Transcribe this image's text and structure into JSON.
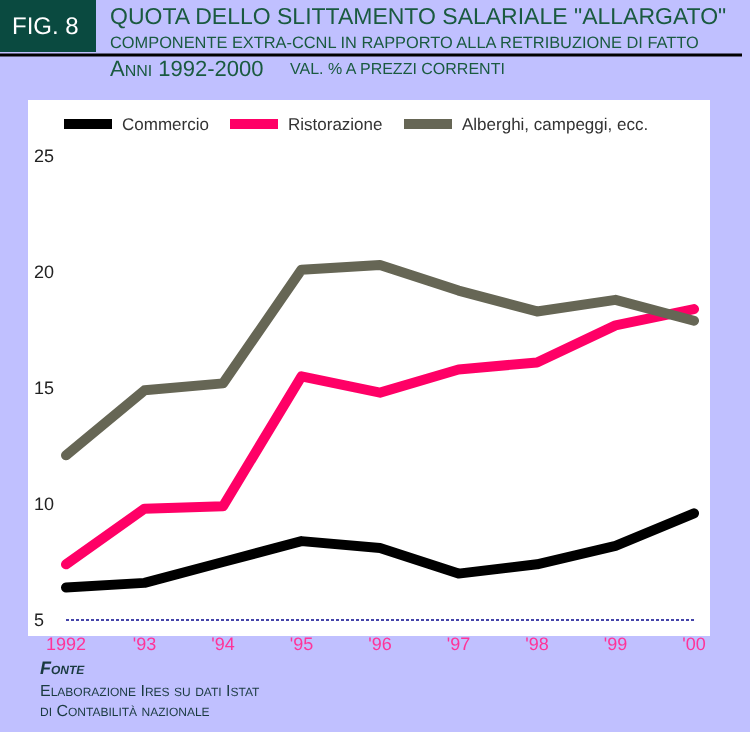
{
  "chart_data": {
    "type": "line",
    "title": "QUOTA DELLO SLITTAMENTO SALARIALE \"ALLARGATO\"",
    "subtitle": "COMPONENTE EXTRA-CCNL IN RAPPORTO ALLA RETRIBUZIONE DI FATTO",
    "annotations": [
      "FIG. 8",
      "Anni 1992-2000",
      "VAL. % A PREZZI CORRENTI",
      "Fonte",
      "Elaborazione Ires su dati Istat",
      "di Contabilità nazionale"
    ],
    "categories": [
      "1992",
      "'93",
      "'94",
      "'95",
      "'96",
      "'97",
      "'98",
      "'99",
      "'00"
    ],
    "series": [
      {
        "name": "Commercio",
        "color": "#000000",
        "values": [
          6.4,
          6.6,
          7.5,
          8.4,
          8.1,
          7.0,
          7.4,
          8.2,
          9.6
        ]
      },
      {
        "name": "Ristorazione",
        "color": "#ff0066",
        "values": [
          7.4,
          9.8,
          9.9,
          15.5,
          14.8,
          15.8,
          16.1,
          17.7,
          18.4
        ]
      },
      {
        "name": "Alberghi, campeggi, ecc.",
        "color": "#666655",
        "values": [
          12.1,
          14.9,
          15.2,
          20.1,
          20.3,
          19.2,
          18.3,
          18.8,
          17.9
        ]
      }
    ],
    "ylim": [
      5,
      25
    ],
    "yticks": [
      5,
      10,
      15,
      20,
      25
    ],
    "grid": false,
    "legend": "top",
    "marker": "none",
    "line_style": "solid"
  }
}
